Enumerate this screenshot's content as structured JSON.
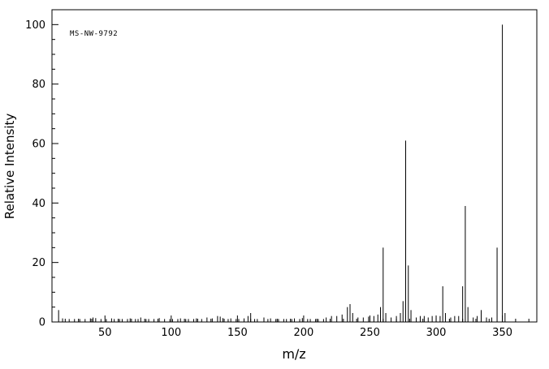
{
  "chart_data": {
    "type": "line",
    "subtype": "mass-spectrum-stick-plot",
    "title": "",
    "watermark": "MS-NW-9792",
    "xlabel": "m/z",
    "ylabel": "Relative Intensity",
    "xlim": [
      10,
      376
    ],
    "ylim": [
      0,
      105
    ],
    "x_major_ticks": [
      50,
      100,
      150,
      200,
      250,
      300,
      350
    ],
    "x_minor_step": 10,
    "y_major_ticks": [
      0,
      20,
      40,
      60,
      80,
      100
    ],
    "y_minor_step": 5,
    "grid": false,
    "legend": "none",
    "line_color": "#000000",
    "watermark_color": "#00008b",
    "peaks": [
      [
        15,
        4
      ],
      [
        18,
        1.2
      ],
      [
        23,
        1
      ],
      [
        27,
        1
      ],
      [
        31,
        1
      ],
      [
        35,
        1
      ],
      [
        39,
        1.2
      ],
      [
        41,
        1.5
      ],
      [
        43,
        1.3
      ],
      [
        47,
        1
      ],
      [
        51,
        1
      ],
      [
        55,
        1.2
      ],
      [
        57,
        1
      ],
      [
        61,
        1
      ],
      [
        63,
        1
      ],
      [
        67,
        1
      ],
      [
        69,
        1.2
      ],
      [
        73,
        1
      ],
      [
        75,
        1
      ],
      [
        77,
        1.5
      ],
      [
        81,
        1
      ],
      [
        83,
        1
      ],
      [
        87,
        1
      ],
      [
        91,
        1.3
      ],
      [
        95,
        1
      ],
      [
        99,
        1
      ],
      [
        101,
        1
      ],
      [
        105,
        1
      ],
      [
        107,
        1.2
      ],
      [
        111,
        1
      ],
      [
        113,
        1
      ],
      [
        117,
        1
      ],
      [
        119,
        1.2
      ],
      [
        123,
        1
      ],
      [
        127,
        1.5
      ],
      [
        131,
        1.2
      ],
      [
        135,
        2
      ],
      [
        137,
        1.8
      ],
      [
        139,
        1.3
      ],
      [
        143,
        1
      ],
      [
        145,
        1.2
      ],
      [
        149,
        1
      ],
      [
        151,
        1
      ],
      [
        155,
        1.2
      ],
      [
        158,
        2
      ],
      [
        160,
        3
      ],
      [
        163,
        1
      ],
      [
        165,
        1
      ],
      [
        170,
        1.5
      ],
      [
        173,
        1
      ],
      [
        175,
        1.2
      ],
      [
        179,
        1
      ],
      [
        181,
        1
      ],
      [
        185,
        1
      ],
      [
        187,
        1
      ],
      [
        191,
        1
      ],
      [
        193,
        1.2
      ],
      [
        197,
        1
      ],
      [
        199,
        1.3
      ],
      [
        203,
        1
      ],
      [
        205,
        1
      ],
      [
        209,
        1
      ],
      [
        211,
        1
      ],
      [
        215,
        1
      ],
      [
        217,
        1.5
      ],
      [
        221,
        2
      ],
      [
        225,
        2
      ],
      [
        229,
        2.5
      ],
      [
        233,
        5
      ],
      [
        235,
        6
      ],
      [
        237,
        3
      ],
      [
        241,
        1.5
      ],
      [
        245,
        1.5
      ],
      [
        249,
        1.8
      ],
      [
        253,
        2
      ],
      [
        256,
        2.5
      ],
      [
        258,
        5
      ],
      [
        260,
        25
      ],
      [
        262,
        3
      ],
      [
        266,
        1.5
      ],
      [
        270,
        2
      ],
      [
        273,
        3
      ],
      [
        275,
        7
      ],
      [
        277,
        61
      ],
      [
        279,
        19
      ],
      [
        281,
        4
      ],
      [
        285,
        1.5
      ],
      [
        288,
        2
      ],
      [
        291,
        2
      ],
      [
        294,
        1.5
      ],
      [
        297,
        2
      ],
      [
        300,
        1.5
      ],
      [
        303,
        2
      ],
      [
        305,
        12
      ],
      [
        307,
        3
      ],
      [
        311,
        1.5
      ],
      [
        314,
        2
      ],
      [
        317,
        2
      ],
      [
        320,
        12
      ],
      [
        322,
        39
      ],
      [
        324,
        5
      ],
      [
        328,
        1.5
      ],
      [
        331,
        2
      ],
      [
        334,
        4
      ],
      [
        338,
        1.5
      ],
      [
        342,
        1.5
      ],
      [
        346,
        25
      ],
      [
        350,
        100
      ],
      [
        352,
        3
      ]
    ]
  }
}
